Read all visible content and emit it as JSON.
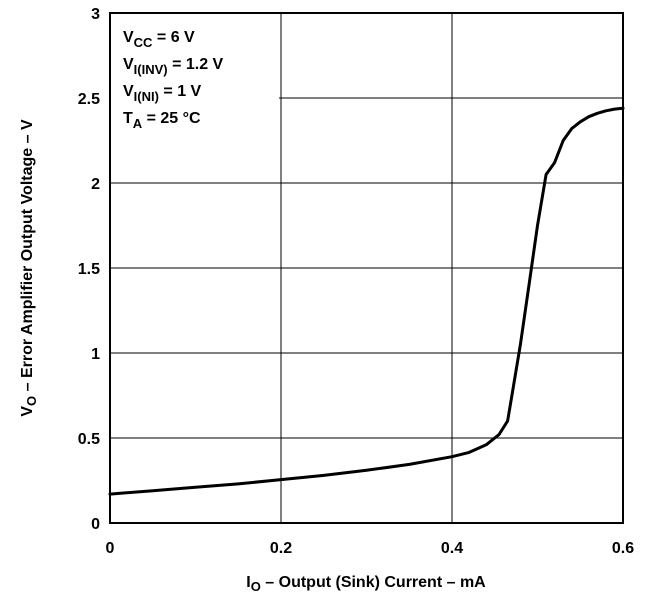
{
  "chart_data": {
    "type": "line",
    "xlabel": {
      "main": "I",
      "sub": "O",
      "rest": " – Output (Sink) Current – mA"
    },
    "ylabel": {
      "main": "V",
      "sub": "O",
      "rest": " – Error Amplifier Output Voltage – V"
    },
    "xlim": [
      0,
      0.6
    ],
    "ylim": [
      0,
      3
    ],
    "x_ticks": [
      "0",
      "0.2",
      "0.4",
      "0.6"
    ],
    "y_ticks": [
      "0",
      "0.5",
      "1",
      "1.5",
      "2",
      "2.5",
      "3"
    ],
    "grid": true,
    "conditions": [
      {
        "main": "V",
        "sub": "CC",
        "rest": " = 6 V"
      },
      {
        "main": "V",
        "sub": "I(INV)",
        "rest": " = 1.2 V"
      },
      {
        "main": "V",
        "sub": "I(NI)",
        "rest": " = 1 V"
      },
      {
        "main": "T",
        "sub": "A",
        "rest": " = 25 °C"
      }
    ],
    "series": [
      {
        "x": [
          0,
          0.05,
          0.1,
          0.15,
          0.2,
          0.25,
          0.3,
          0.35,
          0.4,
          0.42,
          0.44,
          0.455,
          0.465,
          0.47,
          0.48,
          0.49,
          0.5,
          0.51,
          0.52,
          0.53,
          0.54,
          0.55,
          0.56,
          0.57,
          0.58,
          0.59,
          0.6
        ],
        "y": [
          0.17,
          0.19,
          0.21,
          0.23,
          0.255,
          0.28,
          0.31,
          0.345,
          0.39,
          0.415,
          0.46,
          0.52,
          0.6,
          0.75,
          1.05,
          1.4,
          1.75,
          2.05,
          2.12,
          2.25,
          2.32,
          2.36,
          2.39,
          2.41,
          2.425,
          2.435,
          2.44
        ]
      }
    ]
  }
}
